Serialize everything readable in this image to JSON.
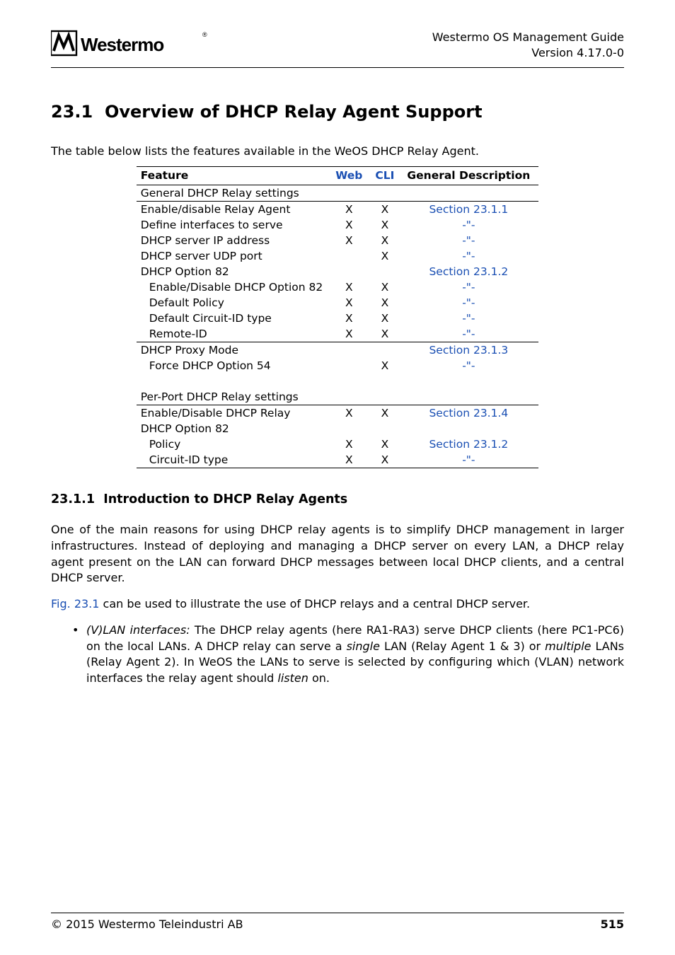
{
  "colors": {
    "link": "#1a4fb3",
    "text": "#000000",
    "background": "#ffffff",
    "rule": "#000000"
  },
  "header": {
    "guide_title": "Westermo OS Management Guide",
    "version": "Version 4.17.0-0",
    "logo_text": "Westermo"
  },
  "section": {
    "number": "23.1",
    "title": "Overview of DHCP Relay Agent Support"
  },
  "intro": "The table below lists the features available in the WeOS DHCP Relay Agent.",
  "table": {
    "headers": {
      "feature": "Feature",
      "web": "Web",
      "cli": "CLI",
      "desc": "General Description"
    },
    "rows": [
      {
        "feature": "General DHCP Relay settings",
        "web": "",
        "cli": "",
        "desc": "",
        "indent": 0,
        "rule_above": false
      },
      {
        "feature": "Enable/disable Relay Agent",
        "web": "X",
        "cli": "X",
        "desc": "Section 23.1.1",
        "link": true,
        "indent": 0,
        "rule_above": true
      },
      {
        "feature": "Define interfaces to serve",
        "web": "X",
        "cli": "X",
        "desc": "-\"-",
        "link": true,
        "indent": 0
      },
      {
        "feature": "DHCP server IP address",
        "web": "X",
        "cli": "X",
        "desc": "-\"-",
        "link": true,
        "indent": 0
      },
      {
        "feature": "DHCP server UDP port",
        "web": "",
        "cli": "X",
        "desc": "-\"-",
        "link": true,
        "indent": 0
      },
      {
        "feature": "DHCP Option 82",
        "web": "",
        "cli": "",
        "desc": "Section 23.1.2",
        "link": true,
        "indent": 0
      },
      {
        "feature": "Enable/Disable DHCP Option 82",
        "web": "X",
        "cli": "X",
        "desc": "-\"-",
        "link": true,
        "indent": 1
      },
      {
        "feature": "Default Policy",
        "web": "X",
        "cli": "X",
        "desc": "-\"-",
        "link": true,
        "indent": 1
      },
      {
        "feature": "Default Circuit-ID type",
        "web": "X",
        "cli": "X",
        "desc": "-\"-",
        "link": true,
        "indent": 1
      },
      {
        "feature": "Remote-ID",
        "web": "X",
        "cli": "X",
        "desc": "-\"-",
        "link": true,
        "indent": 1
      },
      {
        "feature": "DHCP Proxy Mode",
        "web": "",
        "cli": "",
        "desc": "Section 23.1.3",
        "link": true,
        "indent": 0,
        "rule_above": true
      },
      {
        "feature": "Force DHCP Option 54",
        "web": "",
        "cli": "X",
        "desc": "-\"-",
        "link": true,
        "indent": 1
      },
      {
        "spacer": true
      },
      {
        "feature": "Per-Port DHCP Relay settings",
        "web": "",
        "cli": "",
        "desc": "",
        "indent": 0
      },
      {
        "feature": "Enable/Disable DHCP Relay",
        "web": "X",
        "cli": "X",
        "desc": "Section 23.1.4",
        "link": true,
        "indent": 0,
        "rule_above": true
      },
      {
        "feature": "DHCP Option 82",
        "web": "",
        "cli": "",
        "desc": "",
        "indent": 0
      },
      {
        "feature": "Policy",
        "web": "X",
        "cli": "X",
        "desc": "Section 23.1.2",
        "link": true,
        "indent": 1
      },
      {
        "feature": "Circuit-ID type",
        "web": "X",
        "cli": "X",
        "desc": "-\"-",
        "link": true,
        "indent": 1,
        "bottom": true
      }
    ]
  },
  "subsection": {
    "number": "23.1.1",
    "title": "Introduction to DHCP Relay Agents"
  },
  "para1": "One of the main reasons for using DHCP relay agents is to simplify DHCP management in larger infrastructures. Instead of deploying and managing a DHCP server on every LAN, a DHCP relay agent present on the LAN can forward DHCP messages between local DHCP clients, and a central DHCP server.",
  "para2_pre": "Fig. 23.1",
  "para2_post": " can be used to illustrate the use of DHCP relays and a central DHCP server.",
  "bullet": {
    "lead_ital": "(V)LAN interfaces:",
    "text1": " The DHCP relay agents (here RA1-RA3) serve DHCP clients (here PC1-PC6) on the local LANs. A DHCP relay can serve a ",
    "single": "single",
    "text2": " LAN (Relay Agent 1 & 3) or ",
    "multiple": "multiple",
    "text3": " LANs (Relay Agent 2). In WeOS the LANs to serve is selected by configuring which (VLAN) network interfaces the relay agent should ",
    "listen": "listen",
    "text4": " on."
  },
  "footer": {
    "copyright": "© 2015 Westermo Teleindustri AB",
    "page": "515"
  }
}
